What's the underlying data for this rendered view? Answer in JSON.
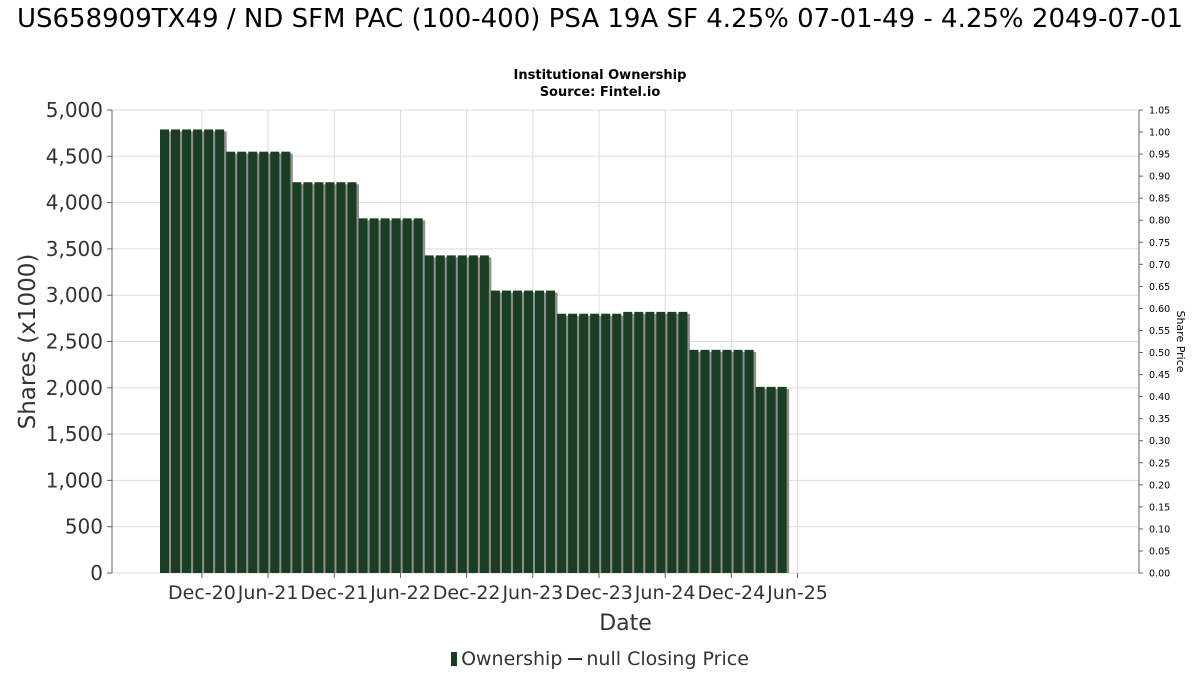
{
  "header": {
    "title": "US658909TX49 / ND SFM PAC (100-400) PSA 19A SF 4.25% 07-01-49 - 4.25% 2049-07-01",
    "subtitle1": "Institutional Ownership",
    "subtitle2": "Source: Fintel.io"
  },
  "legend": {
    "ownership_label": "Ownership",
    "price_label": "null Closing Price"
  },
  "colors": {
    "bar": "#1a3d23",
    "bar_shadow": "#8f8f8f",
    "grid": "#dddddd"
  },
  "chart_data": {
    "type": "bar",
    "xlabel": "Date",
    "ylabel": "Shares (x1000)",
    "y2label": "Share Price",
    "ylim": [
      0,
      5000
    ],
    "y2lim": [
      0,
      1.05
    ],
    "yticks": [
      0,
      500,
      1000,
      1500,
      2000,
      2500,
      3000,
      3500,
      4000,
      4500,
      5000
    ],
    "ytick_labels": [
      "0",
      "500",
      "1,000",
      "1,500",
      "2,000",
      "2,500",
      "3,000",
      "3,500",
      "4,000",
      "4,500",
      "5,000"
    ],
    "y2tick_labels": [
      "0.00",
      "0.05",
      "0.10",
      "0.15",
      "0.20",
      "0.25",
      "0.30",
      "0.35",
      "0.40",
      "0.45",
      "0.50",
      "0.55",
      "0.60",
      "0.65",
      "0.70",
      "0.75",
      "0.80",
      "0.85",
      "0.90",
      "0.95",
      "1.00",
      "1.05"
    ],
    "xtick_labels": [
      "Dec-20",
      "Jun-21",
      "Dec-21",
      "Jun-22",
      "Dec-22",
      "Jun-23",
      "Dec-23",
      "Jun-24",
      "Dec-24",
      "Jun-25"
    ],
    "grid": true,
    "legend_position": "bottom",
    "series": [
      {
        "name": "Ownership",
        "values": [
          4790,
          4790,
          4790,
          4790,
          4790,
          4790,
          4550,
          4550,
          4550,
          4550,
          4550,
          4550,
          4220,
          4220,
          4220,
          4220,
          4220,
          4220,
          3830,
          3830,
          3830,
          3830,
          3830,
          3830,
          3430,
          3430,
          3430,
          3430,
          3430,
          3430,
          3050,
          3050,
          3050,
          3050,
          3050,
          3050,
          2800,
          2800,
          2800,
          2800,
          2800,
          2800,
          2820,
          2820,
          2820,
          2820,
          2820,
          2820,
          2410,
          2410,
          2410,
          2410,
          2410,
          2410,
          2010,
          2010,
          2010
        ]
      }
    ]
  }
}
